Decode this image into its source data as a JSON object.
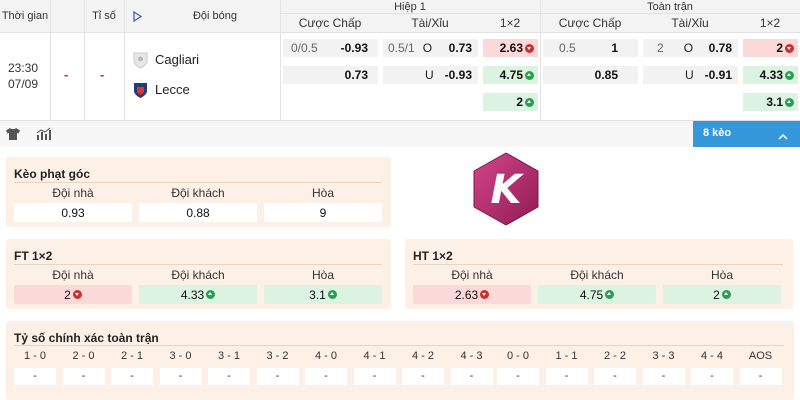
{
  "header": {
    "time_col": "Thời gian",
    "score_col": "Tỉ số",
    "team_col": "Đội bóng",
    "half1": "Hiệp 1",
    "full": "Toàn trận",
    "sub": {
      "handicap": "Cược Chấp",
      "ou": "Tài/Xỉu",
      "x12": "1×2"
    }
  },
  "match": {
    "time": "23:30",
    "date": "07/09",
    "score_home": "-",
    "score_away": "-",
    "home": "Cagliari",
    "away": "Lecce",
    "h1": {
      "hdp_line": "0/0.5",
      "hdp_home": "-0.93",
      "hdp_away": "0.73",
      "ou_line": "0.5/1",
      "ou_o_label": "O",
      "ou_over": "0.73",
      "ou_u_label": "U",
      "ou_under": "-0.93",
      "x1": "2.63",
      "x2": "4.75",
      "xx": "2"
    },
    "ft": {
      "hdp_line": "0.5",
      "hdp_home": "1",
      "hdp_away": "0.85",
      "ou_line": "2",
      "ou_o_label": "O",
      "ou_over": "0.78",
      "ou_u_label": "U",
      "ou_under": "-0.91",
      "x1": "2",
      "x2": "4.33",
      "xx": "3.1"
    }
  },
  "toolbar": {
    "more_label": "8 kèo"
  },
  "corner": {
    "title": "Kèo phạt góc",
    "labels": [
      "Đội nhà",
      "Đội khách",
      "Hòa"
    ],
    "values": [
      "0.93",
      "0.88",
      "9"
    ]
  },
  "logo": {
    "letter": "K"
  },
  "ft12": {
    "title": "FT 1×2",
    "labels": [
      "Đội nhà",
      "Đội khách",
      "Hòa"
    ],
    "values": [
      "2",
      "4.33",
      "3.1"
    ]
  },
  "ht12": {
    "title": "HT 1×2",
    "labels": [
      "Đội nhà",
      "Đội khách",
      "Hòa"
    ],
    "values": [
      "2.63",
      "4.75",
      "2"
    ]
  },
  "correct_score": {
    "title": "Tỷ số chính xác toàn trận",
    "left": [
      "1 - 0",
      "2 - 0",
      "2 - 1",
      "3 - 0",
      "3 - 1",
      "3 - 2",
      "4 - 0",
      "4 - 1",
      "4 - 2",
      "4 - 3"
    ],
    "right": [
      "0 - 0",
      "1 - 1",
      "2 - 2",
      "3 - 3",
      "4 - 4",
      "AOS"
    ],
    "empty": "-"
  },
  "colors": {
    "accent_blue": "#3498db",
    "brand_magenta": "#b6246c"
  }
}
